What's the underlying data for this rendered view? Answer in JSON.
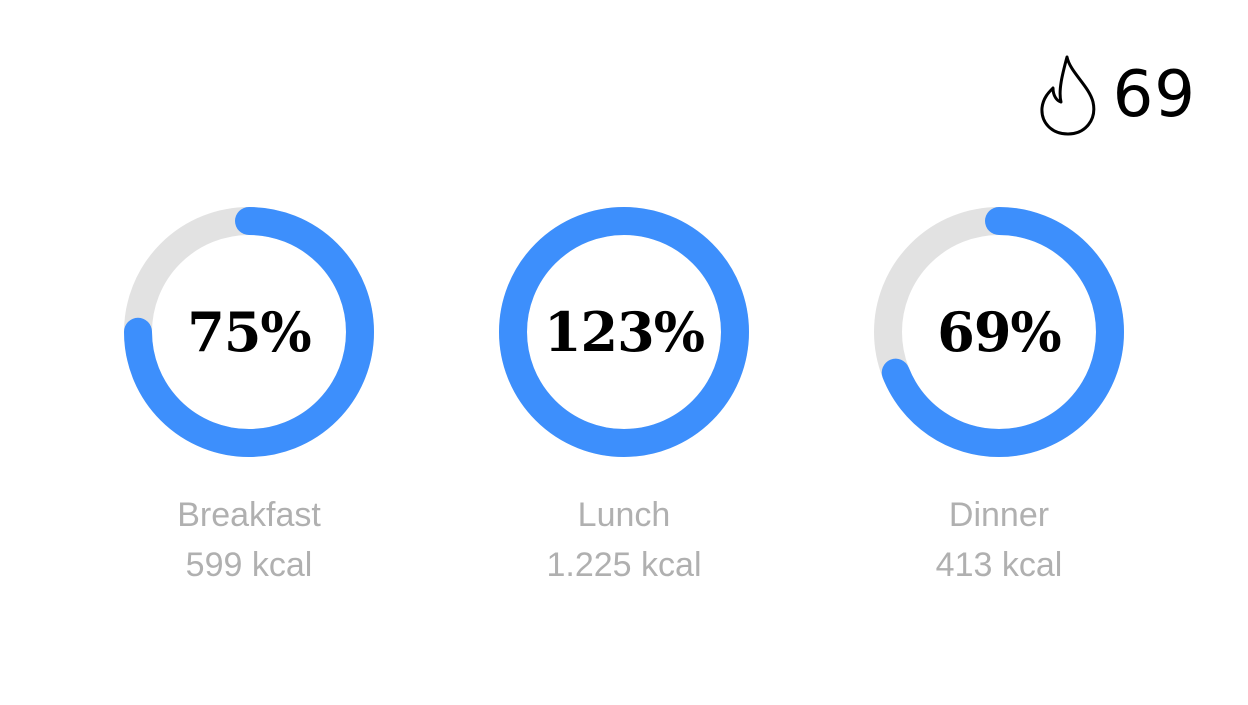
{
  "streak": {
    "icon": "flame-icon",
    "count": "69"
  },
  "colors": {
    "progress": "#3d8ffc",
    "track": "#e2e2e2",
    "label": "#b0b0b0"
  },
  "meals": [
    {
      "name": "Breakfast",
      "kcal": "599 kcal",
      "percent_label": "75%",
      "progress": 0.75
    },
    {
      "name": "Lunch",
      "kcal": "1.225 kcal",
      "percent_label": "123%",
      "progress": 1.23
    },
    {
      "name": "Dinner",
      "kcal": "413 kcal",
      "percent_label": "69%",
      "progress": 0.69
    }
  ]
}
